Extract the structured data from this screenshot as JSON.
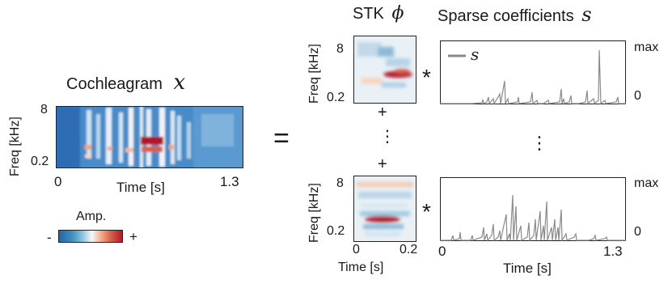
{
  "cochleagram": {
    "title": "Cochleagram",
    "symbol": "x",
    "ylabel": "Freq [kHz]",
    "ytick_top": "8",
    "ytick_bottom": "0.2",
    "xlabel": "Time [s]",
    "xtick_left": "0",
    "xtick_right": "1.3"
  },
  "colorbar": {
    "label": "Amp.",
    "min_label": "-",
    "max_label": "+"
  },
  "operators": {
    "equals": "=",
    "plus": "+",
    "convolve": "*",
    "vdots": "⋮"
  },
  "stk": {
    "title": "STK",
    "symbol": "ϕ",
    "ylabel": "Freq [kHz]",
    "ytick_top": "8",
    "ytick_bottom": "0.2",
    "xlabel": "Time [s]",
    "xtick_left": "0",
    "xtick_right": "0.2"
  },
  "sparse": {
    "title": "Sparse coefficients",
    "symbol": "s",
    "legend": "s",
    "ytick_max": "max",
    "ytick_zero": "0",
    "xlabel": "Time [s]",
    "xtick_left": "0",
    "xtick_right": "1.3"
  },
  "colors": {
    "blue": "#2166ac",
    "red": "#b2182b",
    "trace": "#8a8a8a"
  }
}
